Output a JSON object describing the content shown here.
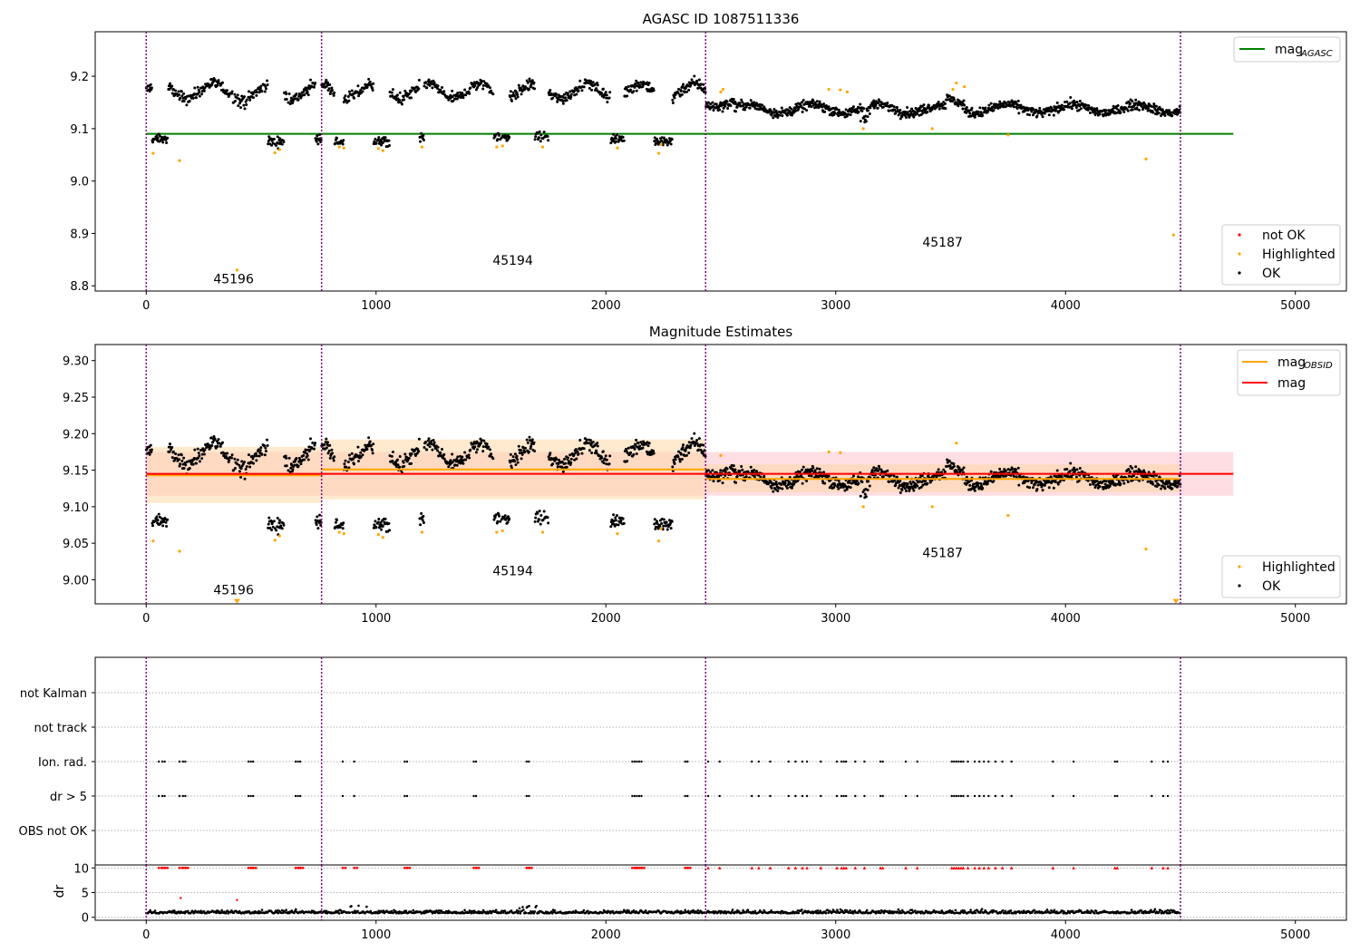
{
  "figure": {
    "colors": {
      "ok": "#000000",
      "highlighted": "#ffa500",
      "not_ok": "#ff0000",
      "agasc_line": "#008000",
      "mag_line": "#ff0000",
      "obsid_line": "#ffa500",
      "obs_boundary": "#800080",
      "mag_band": "#ffb6c1",
      "obsid_band": "#ffd7a8"
    },
    "obs_boundaries": [
      0,
      763,
      2434,
      4500
    ]
  },
  "chart_data": [
    {
      "id": "agasc",
      "type": "scatter",
      "title": "AGASC ID 1087511336",
      "xlabel": "",
      "ylabel": "",
      "xlim": [
        -222,
        5222
      ],
      "ylim": [
        8.79,
        9.285
      ],
      "x_ticks": [
        0,
        1000,
        2000,
        3000,
        4000,
        5000
      ],
      "y_ticks": [
        8.8,
        8.9,
        9.0,
        9.1,
        9.2
      ],
      "y_tick_labels": [
        "8.8",
        "8.9",
        "9.0",
        "9.1",
        "9.2"
      ],
      "grid": false,
      "mag_agasc": 9.09,
      "mag_agasc_x": [
        0,
        4730
      ],
      "obsid_labels": [
        {
          "text": "45196",
          "x": 380,
          "y": 8.805
        },
        {
          "text": "45194",
          "x": 1595,
          "y": 8.84
        },
        {
          "text": "45187",
          "x": 3465,
          "y": 8.875
        }
      ],
      "legend_top": {
        "position": "upper right",
        "entries": [
          "mag",
          "AGASC"
        ]
      },
      "legend_bottom": {
        "position": "lower right",
        "entries": [
          "not OK",
          "Highlighted",
          "OK"
        ]
      },
      "highlighted_points": [
        [
          30,
          9.053
        ],
        [
          145,
          9.039
        ],
        [
          395,
          8.83
        ],
        [
          560,
          9.054
        ],
        [
          580,
          9.06
        ],
        [
          840,
          9.065
        ],
        [
          860,
          9.063
        ],
        [
          1010,
          9.062
        ],
        [
          1030,
          9.058
        ],
        [
          1200,
          9.065
        ],
        [
          1525,
          9.065
        ],
        [
          1550,
          9.067
        ],
        [
          1725,
          9.065
        ],
        [
          2050,
          9.063
        ],
        [
          2230,
          9.053
        ],
        [
          2240,
          9.07
        ],
        [
          2500,
          9.17
        ],
        [
          2510,
          9.175
        ],
        [
          2970,
          9.175
        ],
        [
          3020,
          9.174
        ],
        [
          3050,
          9.17
        ],
        [
          3120,
          9.1
        ],
        [
          3420,
          9.1
        ],
        [
          3510,
          9.175
        ],
        [
          3525,
          9.187
        ],
        [
          3560,
          9.18
        ],
        [
          3750,
          9.088
        ],
        [
          4350,
          9.042
        ],
        [
          4470,
          8.897
        ]
      ]
    },
    {
      "id": "estimates",
      "type": "scatter",
      "title": "Magnitude Estimates",
      "xlabel": "",
      "ylabel": "",
      "xlim": [
        -222,
        5222
      ],
      "ylim": [
        8.967,
        9.322
      ],
      "x_ticks": [
        0,
        1000,
        2000,
        3000,
        4000,
        5000
      ],
      "y_ticks": [
        9.0,
        9.05,
        9.1,
        9.15,
        9.2,
        9.25,
        9.3
      ],
      "y_tick_labels": [
        "9.00",
        "9.05",
        "9.10",
        "9.15",
        "9.20",
        "9.25",
        "9.30"
      ],
      "grid": false,
      "mag": 9.145,
      "mag_band": [
        9.115,
        9.175
      ],
      "mag_x": [
        0,
        4730
      ],
      "obsid_segments": [
        {
          "x": [
            0,
            763
          ],
          "mag": 9.143,
          "band": [
            9.105,
            9.182
          ]
        },
        {
          "x": [
            763,
            2434
          ],
          "mag": 9.151,
          "band": [
            9.11,
            9.192
          ]
        },
        {
          "x": [
            2434,
            4500
          ],
          "mag": 9.138,
          "band": [
            9.12,
            9.158
          ]
        }
      ],
      "obsid_labels": [
        {
          "text": "45196",
          "x": 380,
          "y": 8.98
        },
        {
          "text": "45194",
          "x": 1595,
          "y": 9.006
        },
        {
          "text": "45187",
          "x": 3465,
          "y": 9.031
        }
      ],
      "legend_top": {
        "position": "upper right",
        "entries": [
          "mag",
          "OBSID",
          "mag"
        ]
      },
      "legend_bottom": {
        "position": "lower right",
        "entries": [
          "Highlighted",
          "OK"
        ]
      },
      "highlighted_points": [
        [
          30,
          9.053
        ],
        [
          145,
          9.039
        ],
        [
          560,
          9.054
        ],
        [
          580,
          9.06
        ],
        [
          840,
          9.065
        ],
        [
          860,
          9.063
        ],
        [
          1010,
          9.062
        ],
        [
          1030,
          9.058
        ],
        [
          1200,
          9.065
        ],
        [
          1525,
          9.065
        ],
        [
          1550,
          9.067
        ],
        [
          1725,
          9.065
        ],
        [
          2050,
          9.063
        ],
        [
          2230,
          9.053
        ],
        [
          2240,
          9.07
        ],
        [
          2500,
          9.17
        ],
        [
          2970,
          9.175
        ],
        [
          3020,
          9.174
        ],
        [
          3120,
          9.1
        ],
        [
          3420,
          9.1
        ],
        [
          3525,
          9.187
        ],
        [
          3750,
          9.088
        ],
        [
          4350,
          9.042
        ]
      ],
      "offscale_markers": [
        [
          395,
          8.97
        ],
        [
          4480,
          8.97
        ]
      ]
    },
    {
      "id": "flags",
      "type": "scatter",
      "xlim": [
        -222,
        5222
      ],
      "categories": [
        "OBS not OK",
        "dr > 5",
        "Ion. rad.",
        "not track",
        "not Kalman"
      ],
      "grid": true,
      "flag_x": [
        55,
        70,
        80,
        145,
        160,
        170,
        445,
        455,
        465,
        650,
        660,
        670,
        855,
        905,
        1125,
        1135,
        1425,
        1435,
        1655,
        1665,
        2115,
        2125,
        2135,
        2145,
        2155,
        2345,
        2355,
        2445,
        2495,
        2635,
        2665,
        2715,
        2795,
        2825,
        2855,
        2875,
        2935,
        3005,
        3025,
        3035,
        3045,
        3085,
        3125,
        3195,
        3205,
        3305,
        3355,
        3505,
        3515,
        3525,
        3535,
        3545,
        3555,
        3575,
        3605,
        3625,
        3645,
        3665,
        3695,
        3725,
        3765,
        3945,
        4035,
        4215,
        4225,
        4375,
        4425,
        4445
      ]
    },
    {
      "id": "dr",
      "type": "scatter",
      "xlabel": "",
      "ylabel": "dr",
      "xlim": [
        -222,
        5222
      ],
      "ylim": [
        -0.6,
        10.6
      ],
      "x_ticks": [
        0,
        1000,
        2000,
        3000,
        4000,
        5000
      ],
      "y_ticks": [
        0,
        5,
        10
      ],
      "grid": true,
      "clip_value": 10,
      "extra_points": [
        [
          150,
          3.9
        ],
        [
          395,
          3.5
        ]
      ]
    }
  ]
}
